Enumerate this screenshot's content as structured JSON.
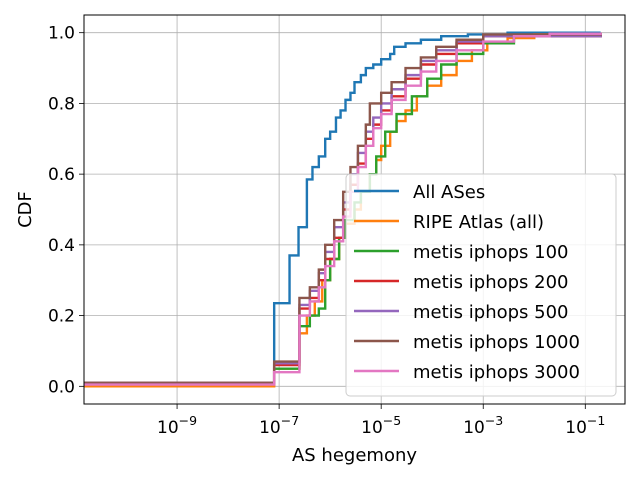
{
  "chart_data": {
    "type": "line",
    "subtype": "ecdf-step",
    "xlabel": "AS hegemony",
    "ylabel": "CDF",
    "xscale": "log",
    "xlim": [
      1.5e-11,
      0.6
    ],
    "ylim": [
      -0.05,
      1.05
    ],
    "x_ticks": [
      {
        "value": 1e-09,
        "base": "10",
        "exp": "−9"
      },
      {
        "value": 1e-07,
        "base": "10",
        "exp": "−7"
      },
      {
        "value": 1e-05,
        "base": "10",
        "exp": "−5"
      },
      {
        "value": 0.001,
        "base": "10",
        "exp": "−3"
      },
      {
        "value": 0.1,
        "base": "10",
        "exp": "−1"
      }
    ],
    "y_ticks": [
      {
        "value": 0.0,
        "label": "0.0"
      },
      {
        "value": 0.2,
        "label": "0.2"
      },
      {
        "value": 0.4,
        "label": "0.4"
      },
      {
        "value": 0.6,
        "label": "0.6"
      },
      {
        "value": 0.8,
        "label": "0.8"
      },
      {
        "value": 1.0,
        "label": "1.0"
      }
    ],
    "grid": true,
    "legend_position": "lower-right",
    "series": [
      {
        "name": "All ASes",
        "color": "#1f77b4",
        "points": [
          [
            1.5e-11,
            0.005
          ],
          [
            8e-08,
            0.005
          ],
          [
            8e-08,
            0.235
          ],
          [
            1.6e-07,
            0.24
          ],
          [
            1.6e-07,
            0.37
          ],
          [
            2.4e-07,
            0.38
          ],
          [
            2.4e-07,
            0.45
          ],
          [
            3.5e-07,
            0.46
          ],
          [
            3.5e-07,
            0.585
          ],
          [
            4.5e-07,
            0.59
          ],
          [
            4.5e-07,
            0.62
          ],
          [
            6e-07,
            0.63
          ],
          [
            6e-07,
            0.65
          ],
          [
            8e-07,
            0.66
          ],
          [
            8e-07,
            0.7
          ],
          [
            1e-06,
            0.72
          ],
          [
            1.3e-06,
            0.76
          ],
          [
            1.6e-06,
            0.78
          ],
          [
            2e-06,
            0.81
          ],
          [
            2.5e-06,
            0.83
          ],
          [
            3e-06,
            0.86
          ],
          [
            4e-06,
            0.88
          ],
          [
            5e-06,
            0.9
          ],
          [
            7e-06,
            0.91
          ],
          [
            1e-05,
            0.925
          ],
          [
            1.5e-05,
            0.94
          ],
          [
            1.8e-05,
            0.96
          ],
          [
            3e-05,
            0.97
          ],
          [
            6e-05,
            0.98
          ],
          [
            0.00015,
            0.99
          ],
          [
            0.0005,
            0.995
          ],
          [
            0.003,
            1.0
          ],
          [
            0.2,
            1.0
          ]
        ]
      },
      {
        "name": "RIPE Atlas (all)",
        "color": "#ff7f0e",
        "points": [
          [
            1.5e-11,
            0.0
          ],
          [
            8e-08,
            0.0
          ],
          [
            8e-08,
            0.05
          ],
          [
            2.5e-07,
            0.07
          ],
          [
            2.5e-07,
            0.15
          ],
          [
            3.5e-07,
            0.2
          ],
          [
            5e-07,
            0.24
          ],
          [
            7e-07,
            0.3
          ],
          [
            1e-06,
            0.36
          ],
          [
            1.5e-06,
            0.42
          ],
          [
            2e-06,
            0.46
          ],
          [
            3e-06,
            0.5
          ],
          [
            4e-06,
            0.55
          ],
          [
            6e-06,
            0.6
          ],
          [
            8e-06,
            0.64
          ],
          [
            1e-05,
            0.68
          ],
          [
            1.5e-05,
            0.72
          ],
          [
            2e-05,
            0.75
          ],
          [
            3e-05,
            0.78
          ],
          [
            5e-05,
            0.82
          ],
          [
            8e-05,
            0.85
          ],
          [
            0.00015,
            0.88
          ],
          [
            0.0003,
            0.92
          ],
          [
            0.0006,
            0.95
          ],
          [
            0.0012,
            0.97
          ],
          [
            0.003,
            0.985
          ],
          [
            0.01,
            0.995
          ],
          [
            0.2,
            1.0
          ]
        ]
      },
      {
        "name": "metis iphops 100",
        "color": "#2ca02c",
        "points": [
          [
            1.5e-11,
            0.01
          ],
          [
            8e-08,
            0.01
          ],
          [
            8e-08,
            0.05
          ],
          [
            2.5e-07,
            0.06
          ],
          [
            2.5e-07,
            0.17
          ],
          [
            4e-07,
            0.2
          ],
          [
            6e-07,
            0.22
          ],
          [
            8e-07,
            0.3
          ],
          [
            1e-06,
            0.36
          ],
          [
            1.5e-06,
            0.42
          ],
          [
            2e-06,
            0.47
          ],
          [
            3e-06,
            0.52
          ],
          [
            4e-06,
            0.55
          ],
          [
            6e-06,
            0.6
          ],
          [
            8e-06,
            0.65
          ],
          [
            1.2e-05,
            0.72
          ],
          [
            2e-05,
            0.77
          ],
          [
            4e-05,
            0.82
          ],
          [
            8e-05,
            0.87
          ],
          [
            0.00015,
            0.91
          ],
          [
            0.0003,
            0.94
          ],
          [
            0.001,
            0.97
          ],
          [
            0.004,
            0.99
          ],
          [
            0.2,
            1.0
          ]
        ]
      },
      {
        "name": "metis iphops 200",
        "color": "#d62728",
        "points": [
          [
            1.5e-11,
            0.01
          ],
          [
            8e-08,
            0.01
          ],
          [
            8e-08,
            0.06
          ],
          [
            2.5e-07,
            0.07
          ],
          [
            2.5e-07,
            0.22
          ],
          [
            4e-07,
            0.25
          ],
          [
            6e-07,
            0.3
          ],
          [
            8e-07,
            0.36
          ],
          [
            1.2e-06,
            0.42
          ],
          [
            1.8e-06,
            0.5
          ],
          [
            2.5e-06,
            0.57
          ],
          [
            3.5e-06,
            0.63
          ],
          [
            5e-06,
            0.7
          ],
          [
            7e-06,
            0.74
          ],
          [
            1e-05,
            0.78
          ],
          [
            1.6e-05,
            0.82
          ],
          [
            3e-05,
            0.87
          ],
          [
            6e-05,
            0.91
          ],
          [
            0.00012,
            0.94
          ],
          [
            0.0003,
            0.97
          ],
          [
            0.001,
            0.99
          ],
          [
            0.2,
            1.0
          ]
        ]
      },
      {
        "name": "metis iphops 500",
        "color": "#9467bd",
        "points": [
          [
            1.5e-11,
            0.01
          ],
          [
            8e-08,
            0.01
          ],
          [
            8e-08,
            0.065
          ],
          [
            2.5e-07,
            0.075
          ],
          [
            2.5e-07,
            0.23
          ],
          [
            4e-07,
            0.27
          ],
          [
            6e-07,
            0.32
          ],
          [
            8e-07,
            0.38
          ],
          [
            1.2e-06,
            0.45
          ],
          [
            1.8e-06,
            0.52
          ],
          [
            2.5e-06,
            0.6
          ],
          [
            3.5e-06,
            0.66
          ],
          [
            5e-06,
            0.72
          ],
          [
            7e-06,
            0.76
          ],
          [
            1e-05,
            0.8
          ],
          [
            1.6e-05,
            0.84
          ],
          [
            3e-05,
            0.88
          ],
          [
            6e-05,
            0.92
          ],
          [
            0.00012,
            0.95
          ],
          [
            0.0003,
            0.975
          ],
          [
            0.001,
            0.99
          ],
          [
            0.2,
            1.0
          ]
        ]
      },
      {
        "name": "metis iphops 1000",
        "color": "#8c564b",
        "points": [
          [
            1.5e-11,
            0.01
          ],
          [
            8e-08,
            0.01
          ],
          [
            8e-08,
            0.07
          ],
          [
            2.5e-07,
            0.08
          ],
          [
            2.5e-07,
            0.25
          ],
          [
            4e-07,
            0.28
          ],
          [
            6e-07,
            0.33
          ],
          [
            8e-07,
            0.4
          ],
          [
            1.2e-06,
            0.47
          ],
          [
            1.8e-06,
            0.55
          ],
          [
            2.5e-06,
            0.62
          ],
          [
            3.5e-06,
            0.68
          ],
          [
            5e-06,
            0.74
          ],
          [
            6e-06,
            0.8
          ],
          [
            1e-05,
            0.83
          ],
          [
            1.6e-05,
            0.86
          ],
          [
            3e-05,
            0.9
          ],
          [
            6e-05,
            0.93
          ],
          [
            0.00012,
            0.96
          ],
          [
            0.0003,
            0.98
          ],
          [
            0.001,
            0.995
          ],
          [
            0.2,
            1.0
          ]
        ]
      },
      {
        "name": "metis iphops 3000",
        "color": "#e377c2",
        "points": [
          [
            1.5e-11,
            0.005
          ],
          [
            8e-08,
            0.005
          ],
          [
            8e-08,
            0.04
          ],
          [
            2.5e-07,
            0.05
          ],
          [
            2.5e-07,
            0.2
          ],
          [
            4e-07,
            0.24
          ],
          [
            6e-07,
            0.28
          ],
          [
            8e-07,
            0.34
          ],
          [
            1.2e-06,
            0.41
          ],
          [
            1.8e-06,
            0.48
          ],
          [
            2.5e-06,
            0.55
          ],
          [
            3.5e-06,
            0.62
          ],
          [
            5e-06,
            0.68
          ],
          [
            7e-06,
            0.73
          ],
          [
            1e-05,
            0.77
          ],
          [
            1.6e-05,
            0.81
          ],
          [
            3e-05,
            0.85
          ],
          [
            6e-05,
            0.89
          ],
          [
            0.00012,
            0.92
          ],
          [
            0.0003,
            0.95
          ],
          [
            0.001,
            0.975
          ],
          [
            0.004,
            0.99
          ],
          [
            0.02,
            0.997
          ],
          [
            0.2,
            1.0
          ]
        ]
      }
    ]
  }
}
